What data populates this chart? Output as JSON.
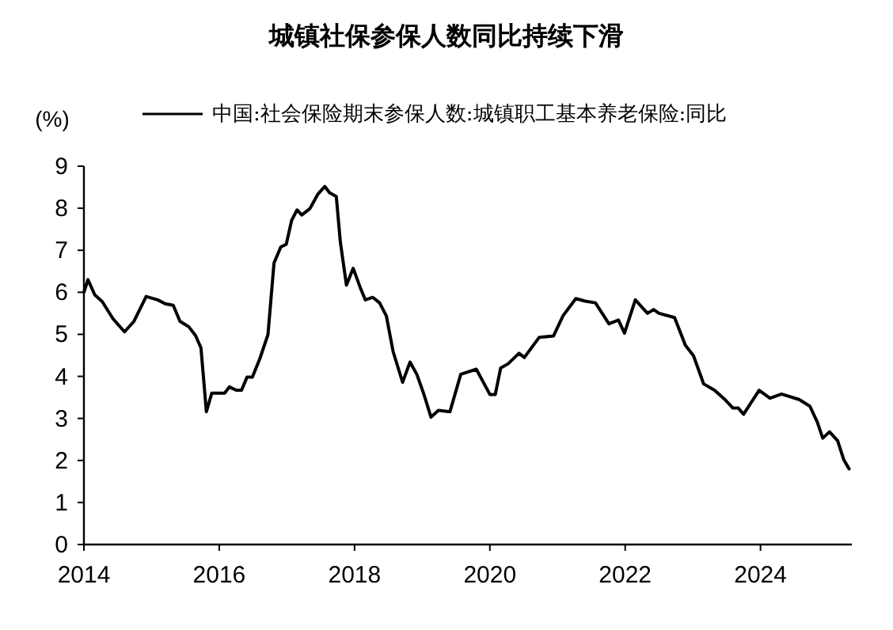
{
  "chart_data": {
    "type": "line",
    "title": "城镇社保参保人数同比持续下滑",
    "ylabel": "(%)",
    "legend": "top",
    "x": [
      2014.0,
      2014.06,
      2014.16,
      2014.27,
      2014.43,
      2014.6,
      2014.74,
      2014.92,
      2015.09,
      2015.2,
      2015.32,
      2015.42,
      2015.55,
      2015.65,
      2015.73,
      2015.81,
      2015.89,
      2016.08,
      2016.15,
      2016.25,
      2016.33,
      2016.41,
      2016.49,
      2016.6,
      2016.72,
      2016.81,
      2016.91,
      2016.99,
      2017.07,
      2017.15,
      2017.22,
      2017.34,
      2017.46,
      2017.56,
      2017.63,
      2017.73,
      2017.79,
      2017.88,
      2017.98,
      2018.08,
      2018.16,
      2018.27,
      2018.37,
      2018.47,
      2018.57,
      2018.71,
      2018.82,
      2018.92,
      2019.02,
      2019.13,
      2019.24,
      2019.41,
      2019.57,
      2019.8,
      2020.0,
      2020.08,
      2020.16,
      2020.27,
      2020.43,
      2020.51,
      2020.73,
      2020.94,
      2021.08,
      2021.27,
      2021.41,
      2021.56,
      2021.76,
      2021.9,
      2021.99,
      2022.15,
      2022.33,
      2022.42,
      2022.5,
      2022.73,
      2022.89,
      2023.01,
      2023.16,
      2023.32,
      2023.48,
      2023.59,
      2023.67,
      2023.75,
      2023.98,
      2024.14,
      2024.31,
      2024.57,
      2024.73,
      2024.84,
      2024.92,
      2025.02,
      2025.14,
      2025.23,
      2025.31
    ],
    "series": [
      {
        "name": "中国:社会保险期末参保人数:城镇职工基本养老保险:同比",
        "color": "#000000",
        "values": [
          6.0,
          6.3,
          5.94,
          5.78,
          5.37,
          5.06,
          5.31,
          5.9,
          5.82,
          5.73,
          5.69,
          5.31,
          5.18,
          4.97,
          4.68,
          3.16,
          3.6,
          3.6,
          3.75,
          3.67,
          3.67,
          3.98,
          3.98,
          4.42,
          4.99,
          6.7,
          7.08,
          7.14,
          7.71,
          7.96,
          7.84,
          7.99,
          8.34,
          8.52,
          8.37,
          8.28,
          7.2,
          6.17,
          6.57,
          6.13,
          5.82,
          5.88,
          5.75,
          5.44,
          4.59,
          3.86,
          4.34,
          4.05,
          3.6,
          3.03,
          3.19,
          3.16,
          4.05,
          4.17,
          3.57,
          3.57,
          4.2,
          4.3,
          4.55,
          4.45,
          4.93,
          4.96,
          5.44,
          5.85,
          5.79,
          5.75,
          5.25,
          5.34,
          5.03,
          5.82,
          5.5,
          5.59,
          5.5,
          5.4,
          4.74,
          4.49,
          3.82,
          3.67,
          3.44,
          3.25,
          3.25,
          3.1,
          3.67,
          3.48,
          3.58,
          3.45,
          3.29,
          2.91,
          2.53,
          2.68,
          2.47,
          2.02,
          1.8
        ]
      }
    ],
    "xlim": [
      2014,
      2025.35
    ],
    "xticks": [
      2014,
      2016,
      2018,
      2020,
      2022,
      2024
    ],
    "ylim": [
      0,
      9
    ],
    "yticks": [
      0,
      1,
      2,
      3,
      4,
      5,
      6,
      7,
      8,
      9
    ]
  }
}
